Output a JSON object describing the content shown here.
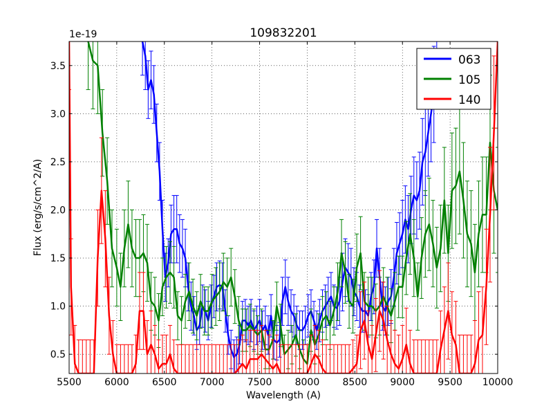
{
  "chart_data": {
    "type": "line",
    "title": "109832201",
    "xlabel": "Wavelength (A)",
    "ylabel": "Flux (erg/s/cm^2/A)",
    "y_offset_label": "1e-19",
    "xlim": [
      5500,
      10000
    ],
    "ylim": [
      0.3,
      3.75
    ],
    "xticks": [
      5500,
      6000,
      6500,
      7000,
      7500,
      8000,
      8500,
      9000,
      9500,
      10000
    ],
    "xtick_labels": [
      "5500",
      "6000",
      "6500",
      "7000",
      "7500",
      "8000",
      "8500",
      "9000",
      "9500",
      "10000"
    ],
    "yticks": [
      0.5,
      1.0,
      1.5,
      2.0,
      2.5,
      3.0,
      3.5
    ],
    "ytick_labels": [
      "0.5",
      "1.0",
      "1.5",
      "2.0",
      "2.5",
      "3.0",
      "3.5"
    ],
    "grid": true,
    "legend_position": "top-right",
    "series": [
      {
        "name": "063",
        "color": "#0000ff",
        "x": [
          6270,
          6300,
          6330,
          6360,
          6390,
          6420,
          6450,
          6480,
          6510,
          6540,
          6570,
          6600,
          6630,
          6660,
          6690,
          6720,
          6750,
          6780,
          6810,
          6840,
          6870,
          6900,
          6930,
          6960,
          6990,
          7020,
          7050,
          7080,
          7110,
          7140,
          7170,
          7200,
          7230,
          7260,
          7290,
          7320,
          7350,
          7380,
          7410,
          7440,
          7470,
          7500,
          7530,
          7560,
          7590,
          7620,
          7650,
          7680,
          7710,
          7740,
          7770,
          7800,
          7830,
          7860,
          7890,
          7920,
          7950,
          7980,
          8010,
          8040,
          8070,
          8100,
          8130,
          8160,
          8190,
          8220,
          8250,
          8280,
          8310,
          8340,
          8370,
          8400,
          8430,
          8460,
          8490,
          8520,
          8550,
          8580,
          8610,
          8640,
          8670,
          8700,
          8730,
          8760,
          8790,
          8820,
          8850,
          8880,
          8910,
          8940,
          8970,
          9000,
          9030,
          9060,
          9090,
          9120,
          9150,
          9180,
          9210,
          9240,
          9270,
          9300,
          9330,
          9360
        ],
        "y": [
          3.75,
          3.6,
          3.25,
          3.35,
          3.2,
          2.8,
          2.4,
          1.8,
          1.3,
          1.45,
          1.75,
          1.8,
          1.8,
          1.65,
          1.6,
          1.5,
          1.2,
          1.0,
          0.9,
          0.75,
          0.8,
          1.0,
          0.95,
          0.85,
          1.0,
          1.1,
          1.2,
          1.22,
          1.2,
          0.95,
          0.7,
          0.55,
          0.47,
          0.5,
          0.6,
          0.85,
          0.85,
          0.8,
          0.85,
          0.75,
          0.8,
          0.85,
          0.75,
          0.8,
          0.7,
          0.9,
          0.65,
          0.62,
          0.65,
          1.05,
          1.2,
          1.05,
          0.95,
          0.9,
          0.8,
          0.75,
          0.75,
          0.8,
          0.9,
          0.95,
          0.85,
          0.75,
          0.85,
          0.95,
          1.0,
          1.05,
          1.1,
          1.0,
          0.98,
          1.05,
          1.25,
          1.4,
          1.35,
          1.3,
          1.15,
          1.1,
          1.0,
          0.95,
          0.95,
          0.9,
          1.1,
          1.2,
          1.6,
          1.3,
          1.0,
          0.95,
          1.05,
          1.1,
          1.3,
          1.55,
          1.65,
          1.75,
          1.9,
          1.8,
          2.0,
          2.15,
          2.1,
          2.2,
          2.5,
          2.6,
          2.8,
          3.0,
          3.2,
          3.6
        ],
        "err": [
          0.35,
          0.35,
          0.3,
          0.3,
          0.3,
          0.3,
          0.3,
          0.3,
          0.25,
          0.25,
          0.3,
          0.35,
          0.35,
          0.3,
          0.3,
          0.3,
          0.25,
          0.25,
          0.2,
          0.2,
          0.2,
          0.22,
          0.22,
          0.2,
          0.22,
          0.22,
          0.25,
          0.25,
          0.25,
          0.22,
          0.2,
          0.2,
          0.18,
          0.18,
          0.2,
          0.2,
          0.22,
          0.2,
          0.22,
          0.2,
          0.2,
          0.22,
          0.2,
          0.2,
          0.2,
          0.22,
          0.2,
          0.18,
          0.18,
          0.25,
          0.28,
          0.25,
          0.22,
          0.22,
          0.2,
          0.2,
          0.2,
          0.2,
          0.22,
          0.22,
          0.2,
          0.2,
          0.22,
          0.22,
          0.22,
          0.25,
          0.25,
          0.22,
          0.22,
          0.25,
          0.3,
          0.3,
          0.3,
          0.3,
          0.25,
          0.25,
          0.22,
          0.22,
          0.22,
          0.22,
          0.25,
          0.28,
          0.3,
          0.3,
          0.25,
          0.25,
          0.25,
          0.28,
          0.3,
          0.32,
          0.32,
          0.35,
          0.35,
          0.35,
          0.35,
          0.4,
          0.4,
          0.4,
          0.45,
          0.45,
          0.45,
          0.5,
          0.5,
          0.5
        ]
      },
      {
        "name": "105",
        "color": "#008000",
        "x": [
          5700,
          5750,
          5800,
          5850,
          5900,
          5950,
          6000,
          6040,
          6080,
          6120,
          6160,
          6200,
          6240,
          6280,
          6320,
          6360,
          6400,
          6440,
          6480,
          6520,
          6560,
          6600,
          6640,
          6680,
          6720,
          6760,
          6800,
          6840,
          6880,
          6920,
          6960,
          7000,
          7040,
          7080,
          7120,
          7160,
          7200,
          7240,
          7280,
          7320,
          7360,
          7400,
          7440,
          7480,
          7520,
          7560,
          7600,
          7640,
          7680,
          7720,
          7760,
          7800,
          7840,
          7880,
          7920,
          7960,
          8000,
          8040,
          8080,
          8120,
          8160,
          8200,
          8240,
          8280,
          8320,
          8360,
          8400,
          8440,
          8480,
          8520,
          8560,
          8600,
          8640,
          8680,
          8720,
          8760,
          8800,
          8840,
          8880,
          8920,
          8960,
          9000,
          9040,
          9080,
          9120,
          9160,
          9200,
          9240,
          9280,
          9320,
          9360,
          9400,
          9440,
          9480,
          9520,
          9560,
          9600,
          9640,
          9680,
          9720,
          9760,
          9800,
          9840,
          9880,
          9920,
          9960,
          10000
        ],
        "y": [
          3.75,
          3.55,
          3.5,
          2.8,
          2.3,
          1.6,
          1.4,
          1.2,
          1.6,
          1.85,
          1.6,
          1.5,
          1.5,
          1.55,
          1.45,
          1.05,
          1.0,
          0.85,
          1.2,
          1.3,
          1.35,
          1.3,
          0.9,
          0.85,
          1.05,
          1.15,
          1.0,
          0.9,
          1.05,
          0.95,
          0.95,
          1.05,
          1.1,
          1.15,
          1.25,
          1.2,
          1.3,
          1.1,
          0.85,
          0.75,
          0.75,
          0.8,
          0.75,
          0.7,
          0.75,
          0.55,
          0.55,
          0.65,
          1.0,
          0.8,
          0.5,
          0.55,
          0.6,
          0.7,
          0.55,
          0.45,
          0.4,
          0.75,
          0.6,
          0.7,
          0.85,
          0.9,
          0.8,
          0.95,
          1.15,
          1.55,
          1.35,
          1.05,
          1.0,
          1.4,
          1.55,
          1.05,
          1.0,
          1.0,
          0.95,
          1.0,
          1.1,
          1.0,
          0.9,
          1.05,
          1.2,
          1.2,
          1.5,
          1.75,
          1.5,
          1.1,
          1.5,
          1.75,
          1.85,
          1.65,
          1.4,
          1.6,
          2.1,
          1.55,
          2.2,
          2.25,
          2.4,
          2.1,
          1.75,
          1.65,
          1.35,
          1.75,
          1.95,
          1.95,
          2.7,
          2.2,
          2.0
        ],
        "err": [
          0.5,
          0.5,
          0.5,
          0.45,
          0.45,
          0.4,
          0.4,
          0.35,
          0.4,
          0.45,
          0.4,
          0.4,
          0.4,
          0.4,
          0.4,
          0.3,
          0.3,
          0.28,
          0.3,
          0.32,
          0.32,
          0.32,
          0.25,
          0.25,
          0.28,
          0.3,
          0.28,
          0.25,
          0.28,
          0.25,
          0.25,
          0.28,
          0.3,
          0.3,
          0.3,
          0.3,
          0.3,
          0.28,
          0.25,
          0.22,
          0.22,
          0.22,
          0.22,
          0.2,
          0.22,
          0.2,
          0.2,
          0.2,
          0.25,
          0.22,
          0.2,
          0.2,
          0.2,
          0.22,
          0.2,
          0.2,
          0.2,
          0.22,
          0.2,
          0.22,
          0.25,
          0.25,
          0.25,
          0.25,
          0.3,
          0.35,
          0.32,
          0.28,
          0.28,
          0.35,
          0.38,
          0.3,
          0.3,
          0.3,
          0.28,
          0.3,
          0.3,
          0.3,
          0.28,
          0.3,
          0.32,
          0.32,
          0.38,
          0.42,
          0.4,
          0.35,
          0.42,
          0.45,
          0.48,
          0.45,
          0.42,
          0.45,
          0.55,
          0.5,
          0.6,
          0.6,
          0.65,
          0.6,
          0.55,
          0.55,
          0.5,
          0.55,
          0.6,
          0.6,
          0.7,
          0.65,
          0.65
        ]
      },
      {
        "name": "140",
        "color": "#ff0000",
        "x": [
          5500,
          5520,
          5560,
          5600,
          5640,
          5680,
          5720,
          5760,
          5800,
          5840,
          5880,
          5920,
          5960,
          6000,
          6040,
          6080,
          6120,
          6160,
          6200,
          6240,
          6280,
          6320,
          6360,
          6400,
          6440,
          6480,
          6520,
          6560,
          6600,
          6640,
          6680,
          6720,
          6760,
          6800,
          6840,
          6880,
          6920,
          6960,
          7000,
          7040,
          7080,
          7120,
          7160,
          7200,
          7240,
          7280,
          7320,
          7360,
          7400,
          7440,
          7480,
          7520,
          7560,
          7600,
          7640,
          7680,
          7720,
          7760,
          7800,
          7840,
          7880,
          7920,
          7960,
          8000,
          8040,
          8080,
          8120,
          8160,
          8200,
          8240,
          8280,
          8320,
          8360,
          8400,
          8440,
          8480,
          8520,
          8560,
          8600,
          8640,
          8680,
          8720,
          8760,
          8800,
          8840,
          8880,
          8920,
          8960,
          9000,
          9040,
          9080,
          9120,
          9160,
          9200,
          9240,
          9280,
          9320,
          9360,
          9400,
          9440,
          9480,
          9520,
          9560,
          9600,
          9640,
          9680,
          9720,
          9760,
          9800,
          9840,
          9880,
          9920,
          9960,
          10000
        ],
        "y": [
          3.75,
          1.2,
          0.4,
          0.3,
          0.3,
          0.3,
          0.3,
          0.3,
          1.5,
          2.2,
          1.7,
          0.9,
          0.5,
          0.3,
          0.3,
          0.3,
          0.3,
          0.3,
          0.4,
          0.95,
          0.95,
          0.5,
          0.6,
          0.5,
          0.35,
          0.4,
          0.4,
          0.5,
          0.35,
          0.3,
          0.3,
          0.3,
          0.3,
          0.3,
          0.3,
          0.3,
          0.3,
          0.3,
          0.3,
          0.3,
          0.3,
          0.3,
          0.3,
          0.3,
          0.3,
          0.35,
          0.4,
          0.35,
          0.45,
          0.45,
          0.45,
          0.5,
          0.45,
          0.4,
          0.35,
          0.4,
          0.3,
          0.3,
          0.3,
          0.3,
          0.3,
          0.3,
          0.3,
          0.3,
          0.4,
          0.5,
          0.45,
          0.35,
          0.3,
          0.3,
          0.3,
          0.3,
          0.3,
          0.3,
          0.3,
          0.35,
          0.4,
          0.75,
          0.85,
          0.6,
          0.45,
          0.7,
          0.95,
          0.85,
          0.65,
          0.5,
          0.4,
          0.35,
          0.45,
          0.6,
          0.4,
          0.3,
          0.3,
          0.3,
          0.3,
          0.3,
          0.3,
          0.3,
          0.55,
          0.75,
          0.95,
          0.7,
          0.6,
          0.3,
          0.3,
          0.3,
          0.3,
          0.4,
          0.65,
          0.7,
          1.2,
          1.95,
          2.8,
          3.75
        ],
        "err": [
          0.5,
          0.5,
          0.4,
          0.35,
          0.35,
          0.35,
          0.35,
          0.35,
          0.5,
          0.55,
          0.5,
          0.4,
          0.35,
          0.3,
          0.3,
          0.3,
          0.3,
          0.3,
          0.3,
          0.4,
          0.4,
          0.35,
          0.35,
          0.3,
          0.3,
          0.3,
          0.3,
          0.3,
          0.3,
          0.3,
          0.3,
          0.3,
          0.3,
          0.3,
          0.3,
          0.3,
          0.3,
          0.3,
          0.3,
          0.3,
          0.3,
          0.3,
          0.3,
          0.3,
          0.3,
          0.3,
          0.3,
          0.3,
          0.3,
          0.3,
          0.3,
          0.3,
          0.3,
          0.3,
          0.3,
          0.3,
          0.3,
          0.3,
          0.3,
          0.3,
          0.3,
          0.3,
          0.3,
          0.3,
          0.3,
          0.3,
          0.3,
          0.3,
          0.3,
          0.3,
          0.3,
          0.3,
          0.3,
          0.3,
          0.3,
          0.3,
          0.3,
          0.4,
          0.4,
          0.35,
          0.35,
          0.38,
          0.42,
          0.4,
          0.35,
          0.35,
          0.35,
          0.35,
          0.35,
          0.38,
          0.35,
          0.35,
          0.35,
          0.35,
          0.35,
          0.35,
          0.35,
          0.35,
          0.4,
          0.45,
          0.5,
          0.45,
          0.45,
          0.4,
          0.4,
          0.4,
          0.4,
          0.45,
          0.5,
          0.5,
          0.6,
          0.7,
          0.8,
          0.9
        ]
      }
    ]
  }
}
